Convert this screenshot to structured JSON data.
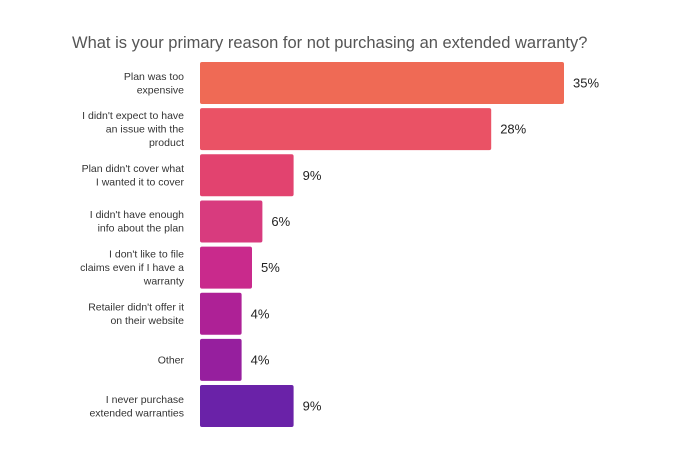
{
  "chart_data": {
    "type": "bar",
    "orientation": "horizontal",
    "title": "What is your primary reason for not purchasing an extended warranty?",
    "value_suffix": "%",
    "categories": [
      [
        "Plan was too",
        "expensive"
      ],
      [
        "I didn't expect to have",
        "an issue with the",
        "product"
      ],
      [
        "Plan didn't cover what",
        "I wanted it to cover"
      ],
      [
        "I didn't have enough",
        "info about the plan"
      ],
      [
        "I don't like to file",
        "claims even if I have a",
        "warranty"
      ],
      [
        "Retailer didn't offer it",
        "on their website"
      ],
      [
        "Other"
      ],
      [
        "I never purchase",
        "extended warranties"
      ]
    ],
    "values": [
      35,
      28,
      9,
      6,
      5,
      4,
      4,
      9
    ],
    "value_labels": [
      "35%",
      "28%",
      "9%",
      "6%",
      "5%",
      "4%",
      "4%",
      "9%"
    ],
    "colors": [
      "#ef6a55",
      "#ea5265",
      "#e2436f",
      "#d83b7e",
      "#c92a8c",
      "#ae2196",
      "#961f9e",
      "#6a22a8"
    ],
    "xlim": [
      0,
      35
    ]
  }
}
